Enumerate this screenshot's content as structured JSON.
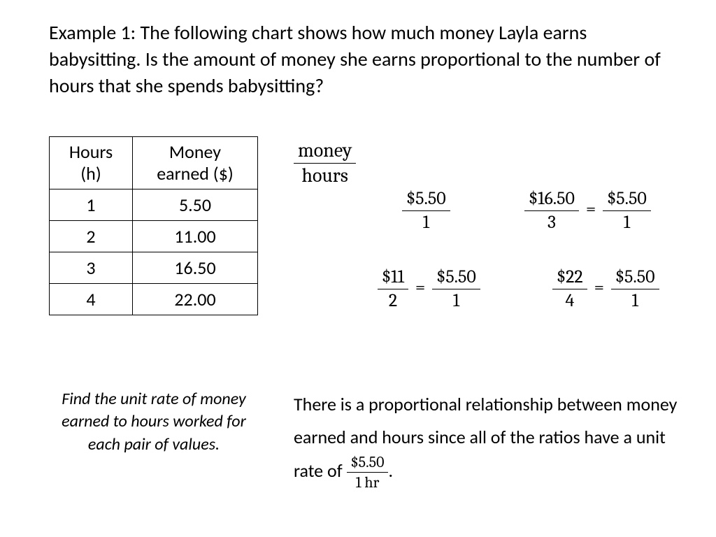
{
  "prompt": "Example 1:  The following chart shows how much money Layla earns babysitting.  Is the amount of money she earns proportional to the number of hours that she spends babysitting?",
  "table": {
    "col1_header_line1": "Hours",
    "col1_header_line2": "(h)",
    "col2_header_line1": "Money",
    "col2_header_line2": "earned ($)",
    "rows": [
      {
        "h": "1",
        "m": "5.50"
      },
      {
        "h": "2",
        "m": "11.00"
      },
      {
        "h": "3",
        "m": "16.50"
      },
      {
        "h": "4",
        "m": "22.00"
      }
    ]
  },
  "ratio_label": {
    "num": "money",
    "den": "hours"
  },
  "ratios": {
    "r1": {
      "num": "$5.50",
      "den": "1"
    },
    "r2": {
      "a_num": "$11",
      "a_den": "2",
      "b_num": "$5.50",
      "b_den": "1"
    },
    "r3": {
      "a_num": "$16.50",
      "a_den": "3",
      "b_num": "$5.50",
      "b_den": "1"
    },
    "r4": {
      "a_num": "$22",
      "a_den": "4",
      "b_num": "$5.50",
      "b_den": "1"
    }
  },
  "equals": "=",
  "instruction": "Find the unit rate of money earned to hours worked for each pair of values.",
  "conclusion_text": "There is a proportional relationship between money earned and hours since all of the ratios have a unit rate of ",
  "conclusion_frac": {
    "num": "$5.50",
    "den": "1 hr"
  },
  "period": "."
}
